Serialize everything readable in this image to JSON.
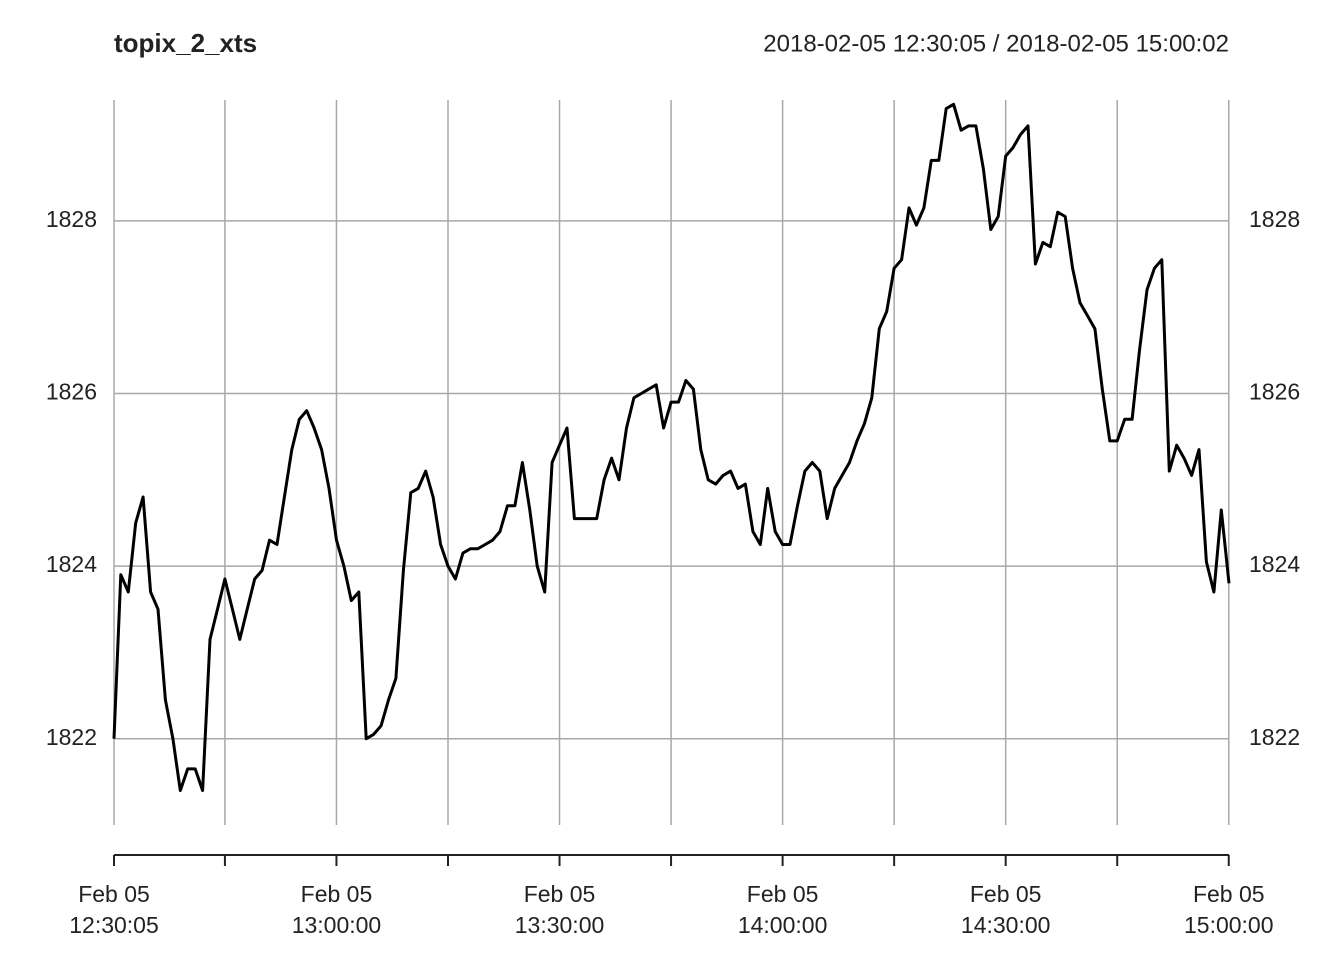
{
  "chart_data": {
    "type": "line",
    "title": "topix_2_xts",
    "subtitle": "2018-02-05 12:30:05 / 2018-02-05 15:00:02",
    "color": "#000000",
    "grid": true,
    "x": [
      "12:30:05",
      "12:31",
      "12:32",
      "12:33",
      "12:34",
      "12:35",
      "12:36",
      "12:37",
      "12:38",
      "12:39",
      "12:40",
      "12:41",
      "12:42",
      "12:43",
      "12:44",
      "12:45",
      "12:46",
      "12:47",
      "12:48",
      "12:49",
      "12:50",
      "12:51",
      "12:52",
      "12:53",
      "12:54",
      "12:55",
      "12:56",
      "12:57",
      "12:58",
      "12:59",
      "13:00",
      "13:01",
      "13:02",
      "13:03",
      "13:04",
      "13:05",
      "13:06",
      "13:07",
      "13:08",
      "13:09",
      "13:10",
      "13:11",
      "13:12",
      "13:13",
      "13:14",
      "13:15",
      "13:16",
      "13:17",
      "13:18",
      "13:19",
      "13:20",
      "13:21",
      "13:22",
      "13:23",
      "13:24",
      "13:25",
      "13:26",
      "13:27",
      "13:28",
      "13:29",
      "13:30",
      "13:31",
      "13:32",
      "13:33",
      "13:34",
      "13:35",
      "13:36",
      "13:37",
      "13:38",
      "13:39",
      "13:40",
      "13:41",
      "13:42",
      "13:43",
      "13:44",
      "13:45",
      "13:46",
      "13:47",
      "13:48",
      "13:49",
      "13:50",
      "13:51",
      "13:52",
      "13:53",
      "13:54",
      "13:55",
      "13:56",
      "13:57",
      "13:58",
      "13:59",
      "14:00",
      "14:01",
      "14:02",
      "14:03",
      "14:04",
      "14:05",
      "14:06",
      "14:07",
      "14:08",
      "14:09",
      "14:10",
      "14:11",
      "14:12",
      "14:13",
      "14:14",
      "14:15",
      "14:16",
      "14:17",
      "14:18",
      "14:19",
      "14:20",
      "14:21",
      "14:22",
      "14:23",
      "14:24",
      "14:25",
      "14:26",
      "14:27",
      "14:28",
      "14:29",
      "14:30",
      "14:31",
      "14:32",
      "14:33",
      "14:34",
      "14:35",
      "14:36",
      "14:37",
      "14:38",
      "14:39",
      "14:40",
      "14:41",
      "14:42",
      "14:43",
      "14:44",
      "14:45",
      "14:46",
      "14:47",
      "14:48",
      "14:49",
      "14:50",
      "14:51",
      "14:52",
      "14:53",
      "14:54",
      "14:55",
      "14:56",
      "14:57",
      "14:58",
      "14:59",
      "15:00:02"
    ],
    "values": [
      1822.0,
      1823.9,
      1823.7,
      1824.5,
      1824.8,
      1823.7,
      1823.5,
      1822.45,
      1822.0,
      1821.4,
      1821.65,
      1821.65,
      1821.4,
      1823.15,
      1823.5,
      1823.85,
      1823.5,
      1823.15,
      1823.5,
      1823.85,
      1823.95,
      1824.3,
      1824.25,
      1824.8,
      1825.35,
      1825.7,
      1825.8,
      1825.6,
      1825.35,
      1824.9,
      1824.3,
      1824.0,
      1823.6,
      1823.7,
      1822.0,
      1822.05,
      1822.15,
      1822.45,
      1822.7,
      1823.95,
      1824.85,
      1824.9,
      1825.1,
      1824.8,
      1824.25,
      1824.0,
      1823.85,
      1824.15,
      1824.2,
      1824.2,
      1824.25,
      1824.3,
      1824.4,
      1824.7,
      1824.7,
      1825.2,
      1824.65,
      1824.0,
      1823.7,
      1825.2,
      1825.4,
      1825.6,
      1824.55,
      1824.55,
      1824.55,
      1824.55,
      1825.0,
      1825.25,
      1825.0,
      1825.6,
      1825.95,
      1826.0,
      1826.05,
      1826.1,
      1825.6,
      1825.9,
      1825.9,
      1826.15,
      1826.05,
      1825.35,
      1825.0,
      1824.95,
      1825.05,
      1825.1,
      1824.9,
      1824.95,
      1824.4,
      1824.25,
      1824.9,
      1824.4,
      1824.25,
      1824.25,
      1824.7,
      1825.1,
      1825.2,
      1825.1,
      1824.55,
      1824.9,
      1825.05,
      1825.2,
      1825.45,
      1825.65,
      1825.95,
      1826.75,
      1826.95,
      1827.45,
      1827.55,
      1828.15,
      1827.95,
      1828.15,
      1828.7,
      1828.7,
      1829.3,
      1829.35,
      1829.05,
      1829.1,
      1829.1,
      1828.6,
      1827.9,
      1828.05,
      1828.75,
      1828.85,
      1829.0,
      1829.1,
      1827.5,
      1827.75,
      1827.7,
      1828.1,
      1828.05,
      1827.45,
      1827.05,
      1826.9,
      1826.75,
      1826.05,
      1825.45,
      1825.45,
      1825.7,
      1825.7,
      1826.5,
      1827.2,
      1827.45,
      1827.55,
      1825.1,
      1825.4,
      1825.25,
      1825.05,
      1825.35,
      1824.05,
      1823.7,
      1824.65,
      1823.8
    ],
    "xlim": [
      "12:30:05",
      "15:00:02"
    ],
    "xticks": [
      {
        "value": "12:30:05",
        "label": [
          "Feb 05",
          "12:30:05"
        ]
      },
      {
        "value": "12:45",
        "label": null
      },
      {
        "value": "13:00",
        "label": [
          "Feb 05",
          "13:00:00"
        ]
      },
      {
        "value": "13:15",
        "label": null
      },
      {
        "value": "13:30",
        "label": [
          "Feb 05",
          "13:30:00"
        ]
      },
      {
        "value": "13:45",
        "label": null
      },
      {
        "value": "14:00",
        "label": [
          "Feb 05",
          "14:00:00"
        ]
      },
      {
        "value": "14:15",
        "label": null
      },
      {
        "value": "14:30",
        "label": [
          "Feb 05",
          "14:30:00"
        ]
      },
      {
        "value": "14:45",
        "label": null
      },
      {
        "value": "15:00",
        "label": [
          "Feb 05",
          "15:00:00"
        ]
      }
    ],
    "ylim": [
      1821.0,
      1829.4
    ],
    "yticks": [
      1822,
      1824,
      1826,
      1828
    ]
  }
}
